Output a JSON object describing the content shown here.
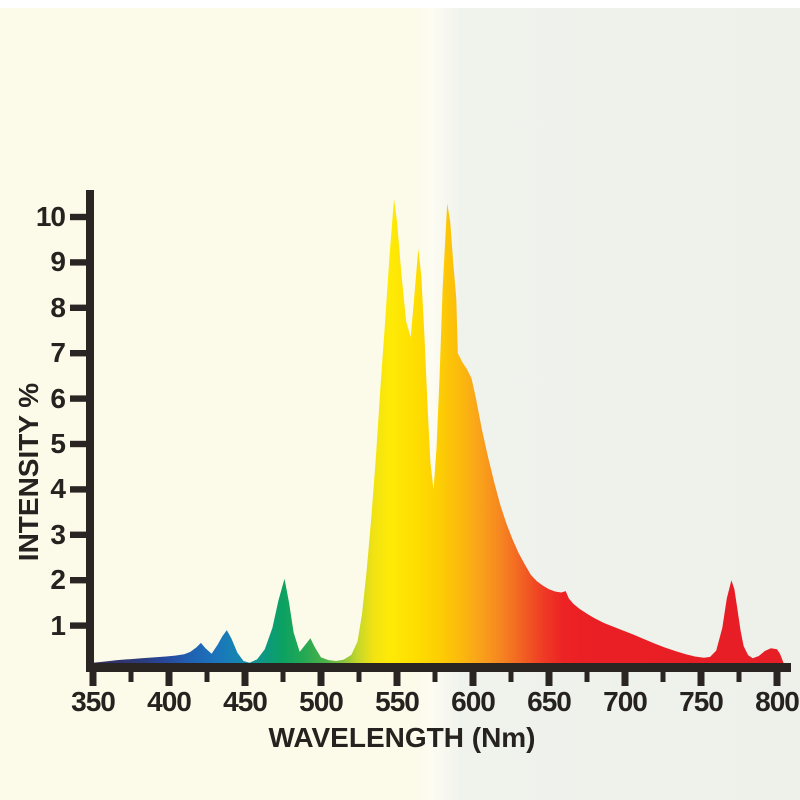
{
  "chart_data": {
    "type": "area",
    "title": "",
    "xlabel": "WAVELENGTH (Nm)",
    "ylabel": "INTENSITY %",
    "xlim": [
      350,
      805
    ],
    "ylim": [
      0,
      10.8
    ],
    "grid": false,
    "legend": false,
    "x_ticks_major": [
      350,
      400,
      450,
      500,
      550,
      600,
      650,
      700,
      750,
      800
    ],
    "x_ticks_minor": [
      375,
      425,
      475,
      525,
      575,
      625,
      675,
      725,
      775
    ],
    "y_ticks": [
      1,
      2,
      3,
      4,
      5,
      6,
      7,
      8,
      9,
      10
    ],
    "series_name": "spectral-intensity",
    "points": [
      [
        350,
        0.18
      ],
      [
        358,
        0.21
      ],
      [
        366,
        0.24
      ],
      [
        374,
        0.26
      ],
      [
        382,
        0.28
      ],
      [
        390,
        0.3
      ],
      [
        398,
        0.32
      ],
      [
        404,
        0.34
      ],
      [
        410,
        0.37
      ],
      [
        414,
        0.42
      ],
      [
        418,
        0.52
      ],
      [
        421,
        0.62
      ],
      [
        424,
        0.5
      ],
      [
        428,
        0.38
      ],
      [
        432,
        0.58
      ],
      [
        435,
        0.76
      ],
      [
        438,
        0.9
      ],
      [
        441,
        0.72
      ],
      [
        445,
        0.4
      ],
      [
        449,
        0.22
      ],
      [
        453,
        0.18
      ],
      [
        458,
        0.26
      ],
      [
        463,
        0.48
      ],
      [
        468,
        0.95
      ],
      [
        472,
        1.55
      ],
      [
        476,
        2.03
      ],
      [
        479,
        1.5
      ],
      [
        482,
        0.85
      ],
      [
        486,
        0.42
      ],
      [
        489,
        0.55
      ],
      [
        493,
        0.72
      ],
      [
        496,
        0.52
      ],
      [
        500,
        0.3
      ],
      [
        505,
        0.24
      ],
      [
        510,
        0.22
      ],
      [
        515,
        0.25
      ],
      [
        520,
        0.36
      ],
      [
        524,
        0.65
      ],
      [
        527,
        1.25
      ],
      [
        530,
        2.2
      ],
      [
        533,
        3.35
      ],
      [
        536,
        4.65
      ],
      [
        539,
        6.2
      ],
      [
        542,
        7.6
      ],
      [
        545,
        9.1
      ],
      [
        548,
        10.4
      ],
      [
        550,
        9.9
      ],
      [
        553,
        8.7
      ],
      [
        556,
        7.7
      ],
      [
        559,
        7.35
      ],
      [
        561,
        8.1
      ],
      [
        564,
        9.3
      ],
      [
        566,
        8.7
      ],
      [
        568,
        7.4
      ],
      [
        570,
        5.9
      ],
      [
        572,
        4.6
      ],
      [
        574,
        4.0
      ],
      [
        576,
        4.9
      ],
      [
        578,
        6.5
      ],
      [
        580,
        8.4
      ],
      [
        583,
        10.3
      ],
      [
        585,
        9.9
      ],
      [
        587,
        9.0
      ],
      [
        589,
        8.2
      ],
      [
        590,
        7.0
      ],
      [
        593,
        6.8
      ],
      [
        596,
        6.65
      ],
      [
        599,
        6.45
      ],
      [
        602,
        6.0
      ],
      [
        606,
        5.3
      ],
      [
        610,
        4.7
      ],
      [
        614,
        4.15
      ],
      [
        618,
        3.65
      ],
      [
        622,
        3.25
      ],
      [
        626,
        2.9
      ],
      [
        630,
        2.6
      ],
      [
        634,
        2.35
      ],
      [
        638,
        2.12
      ],
      [
        642,
        1.98
      ],
      [
        646,
        1.88
      ],
      [
        650,
        1.8
      ],
      [
        654,
        1.75
      ],
      [
        658,
        1.73
      ],
      [
        661,
        1.76
      ],
      [
        663,
        1.6
      ],
      [
        666,
        1.48
      ],
      [
        670,
        1.37
      ],
      [
        675,
        1.26
      ],
      [
        680,
        1.16
      ],
      [
        686,
        1.06
      ],
      [
        692,
        0.98
      ],
      [
        698,
        0.9
      ],
      [
        705,
        0.81
      ],
      [
        712,
        0.71
      ],
      [
        719,
        0.61
      ],
      [
        726,
        0.52
      ],
      [
        733,
        0.44
      ],
      [
        740,
        0.37
      ],
      [
        746,
        0.32
      ],
      [
        752,
        0.29
      ],
      [
        756,
        0.31
      ],
      [
        760,
        0.45
      ],
      [
        764,
        0.95
      ],
      [
        767,
        1.6
      ],
      [
        770,
        2.0
      ],
      [
        772,
        1.8
      ],
      [
        774,
        1.35
      ],
      [
        776,
        0.9
      ],
      [
        778,
        0.55
      ],
      [
        781,
        0.35
      ],
      [
        784,
        0.28
      ],
      [
        788,
        0.33
      ],
      [
        792,
        0.44
      ],
      [
        796,
        0.5
      ],
      [
        800,
        0.48
      ],
      [
        802,
        0.38
      ],
      [
        805,
        0.12
      ]
    ],
    "peaks": [
      {
        "wavelength": 421,
        "intensity": 0.6
      },
      {
        "wavelength": 438,
        "intensity": 0.9
      },
      {
        "wavelength": 476,
        "intensity": 2.0
      },
      {
        "wavelength": 493,
        "intensity": 0.7
      },
      {
        "wavelength": 548,
        "intensity": 10.4
      },
      {
        "wavelength": 564,
        "intensity": 9.3
      },
      {
        "wavelength": 583,
        "intensity": 10.3
      },
      {
        "wavelength": 770,
        "intensity": 2.0
      }
    ],
    "spectral_gradient": [
      {
        "nm": 350,
        "color": "#322D63"
      },
      {
        "nm": 378,
        "color": "#2D3876"
      },
      {
        "nm": 398,
        "color": "#28489C"
      },
      {
        "nm": 413,
        "color": "#2060B1"
      },
      {
        "nm": 432,
        "color": "#1B75BC"
      },
      {
        "nm": 448,
        "color": "#1588AE"
      },
      {
        "nm": 462,
        "color": "#0D9884"
      },
      {
        "nm": 474,
        "color": "#0BA163"
      },
      {
        "nm": 488,
        "color": "#23A854"
      },
      {
        "nm": 502,
        "color": "#49B149"
      },
      {
        "nm": 514,
        "color": "#85BF3D"
      },
      {
        "nm": 524,
        "color": "#C3D72A"
      },
      {
        "nm": 534,
        "color": "#F0E214"
      },
      {
        "nm": 545,
        "color": "#FEEA07"
      },
      {
        "nm": 562,
        "color": "#FEDE00"
      },
      {
        "nm": 578,
        "color": "#FDCE04"
      },
      {
        "nm": 592,
        "color": "#FBB90D"
      },
      {
        "nm": 604,
        "color": "#F9A31A"
      },
      {
        "nm": 618,
        "color": "#F68621"
      },
      {
        "nm": 632,
        "color": "#F26222"
      },
      {
        "nm": 646,
        "color": "#EF3B24"
      },
      {
        "nm": 660,
        "color": "#EC2224"
      },
      {
        "nm": 680,
        "color": "#EA1F25"
      },
      {
        "nm": 805,
        "color": "#E61E25"
      }
    ],
    "styles": {
      "axis_color": "#2A2522",
      "label_color": "#262220",
      "background_left": "#FCFAE9",
      "background_right": "#EDF1EA"
    }
  }
}
